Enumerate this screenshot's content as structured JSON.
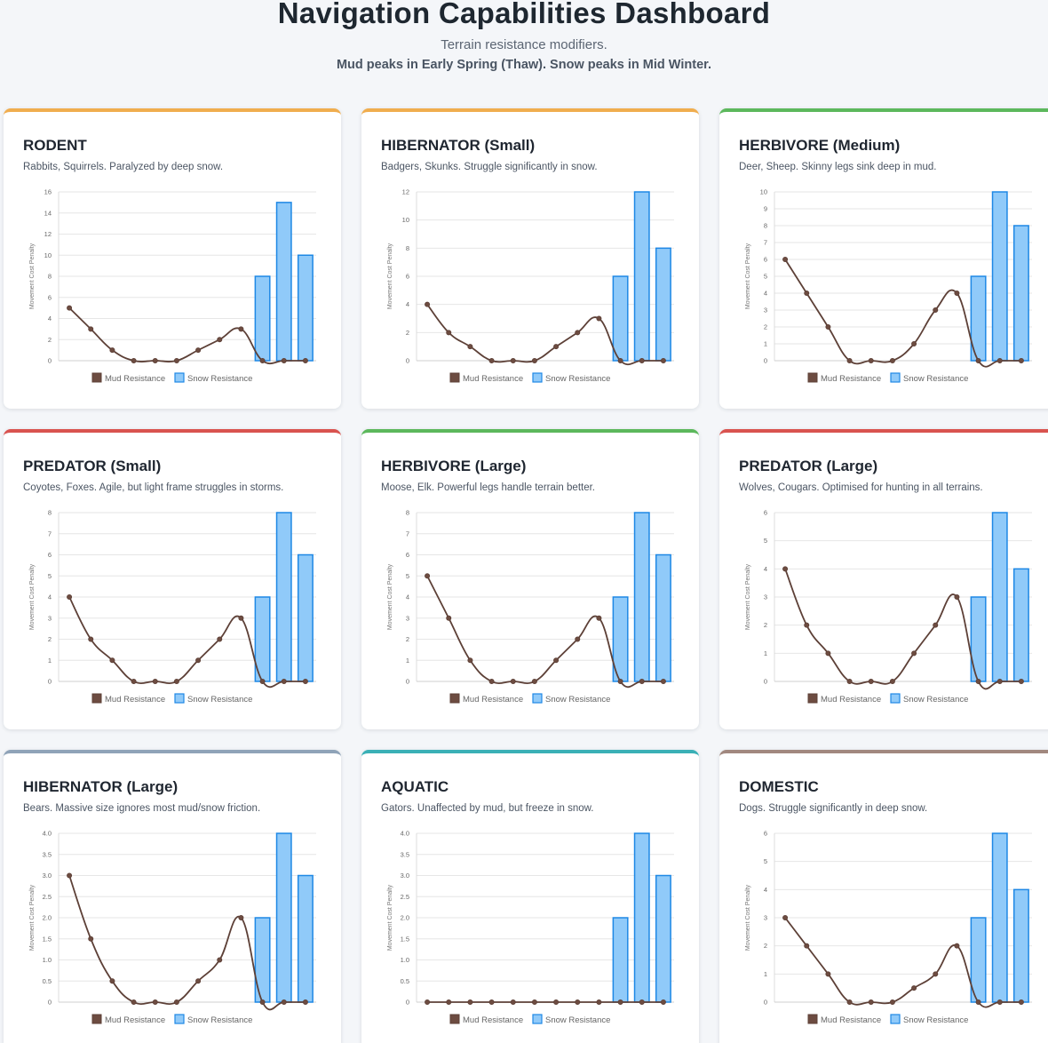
{
  "header": {
    "title": "Navigation Capabilities Dashboard",
    "subtitle": "Terrain resistance modifiers.",
    "peak_note": "Mud peaks in Early Spring (Thaw). Snow peaks in Mid Winter."
  },
  "legend": {
    "mud": "Mud Resistance",
    "snow": "Snow Resistance"
  },
  "y_axis_label": "Movement Cost Penalty",
  "colors": {
    "mud_line": "#5d4037",
    "mud_point": "#6d4c41",
    "snow_fill": "#90caf9",
    "snow_border": "#1e88e5",
    "grid": "#e6e6e6",
    "accent_orange": "#f0ad4e",
    "accent_green": "#5cb85c",
    "accent_red": "#d9534f",
    "accent_gray": "#8fa3b8",
    "accent_teal": "#3ab0b6",
    "accent_brown": "#a1887f"
  },
  "chart_data": [
    {
      "id": "rodent",
      "title": "RODENT",
      "description": "Rabbits, Squirrels. Paralyzed by deep snow.",
      "accent": "#f0ad4e",
      "type": "bar",
      "ylim": [
        0,
        16
      ],
      "ystep": 2,
      "ylabel": "Movement Cost Penalty",
      "series": [
        {
          "name": "Mud Resistance",
          "type": "line",
          "values": [
            5,
            3,
            1,
            0,
            0,
            0,
            1,
            2,
            3,
            0,
            0,
            0
          ]
        },
        {
          "name": "Snow Resistance",
          "type": "bar",
          "values": [
            0,
            0,
            0,
            0,
            0,
            0,
            0,
            0,
            0,
            8,
            15,
            10
          ]
        }
      ]
    },
    {
      "id": "hibernator-small",
      "title": "HIBERNATOR (Small)",
      "description": "Badgers, Skunks. Struggle significantly in snow.",
      "accent": "#f0ad4e",
      "type": "bar",
      "ylim": [
        0,
        12
      ],
      "ystep": 2,
      "ylabel": "Movement Cost Penalty",
      "series": [
        {
          "name": "Mud Resistance",
          "type": "line",
          "values": [
            4,
            2,
            1,
            0,
            0,
            0,
            1,
            2,
            3,
            0,
            0,
            0
          ]
        },
        {
          "name": "Snow Resistance",
          "type": "bar",
          "values": [
            0,
            0,
            0,
            0,
            0,
            0,
            0,
            0,
            0,
            6,
            12,
            8
          ]
        }
      ]
    },
    {
      "id": "herbivore-medium",
      "title": "HERBIVORE (Medium)",
      "description": "Deer, Sheep. Skinny legs sink deep in mud.",
      "accent": "#5cb85c",
      "type": "bar",
      "ylim": [
        0,
        10
      ],
      "ystep": 1,
      "ylabel": "Movement Cost Penalty",
      "series": [
        {
          "name": "Mud Resistance",
          "type": "line",
          "values": [
            6,
            4,
            2,
            0,
            0,
            0,
            1,
            3,
            4,
            0,
            0,
            0
          ]
        },
        {
          "name": "Snow Resistance",
          "type": "bar",
          "values": [
            0,
            0,
            0,
            0,
            0,
            0,
            0,
            0,
            0,
            5,
            10,
            8
          ]
        }
      ]
    },
    {
      "id": "predator-small",
      "title": "PREDATOR (Small)",
      "description": "Coyotes, Foxes. Agile, but light frame struggles in storms.",
      "accent": "#d9534f",
      "type": "bar",
      "ylim": [
        0,
        8
      ],
      "ystep": 1,
      "ylabel": "Movement Cost Penalty",
      "series": [
        {
          "name": "Mud Resistance",
          "type": "line",
          "values": [
            4,
            2,
            1,
            0,
            0,
            0,
            1,
            2,
            3,
            0,
            0,
            0
          ]
        },
        {
          "name": "Snow Resistance",
          "type": "bar",
          "values": [
            0,
            0,
            0,
            0,
            0,
            0,
            0,
            0,
            0,
            4,
            8,
            6
          ]
        }
      ]
    },
    {
      "id": "herbivore-large",
      "title": "HERBIVORE (Large)",
      "description": "Moose, Elk. Powerful legs handle terrain better.",
      "accent": "#5cb85c",
      "type": "bar",
      "ylim": [
        0,
        8
      ],
      "ystep": 1,
      "ylabel": "Movement Cost Penalty",
      "series": [
        {
          "name": "Mud Resistance",
          "type": "line",
          "values": [
            5,
            3,
            1,
            0,
            0,
            0,
            1,
            2,
            3,
            0,
            0,
            0
          ]
        },
        {
          "name": "Snow Resistance",
          "type": "bar",
          "values": [
            0,
            0,
            0,
            0,
            0,
            0,
            0,
            0,
            0,
            4,
            8,
            6
          ]
        }
      ]
    },
    {
      "id": "predator-large",
      "title": "PREDATOR (Large)",
      "description": "Wolves, Cougars. Optimised for hunting in all terrains.",
      "accent": "#d9534f",
      "type": "bar",
      "ylim": [
        0,
        6
      ],
      "ystep": 1,
      "ylabel": "Movement Cost Penalty",
      "series": [
        {
          "name": "Mud Resistance",
          "type": "line",
          "values": [
            4,
            2,
            1,
            0,
            0,
            0,
            1,
            2,
            3,
            0,
            0,
            0
          ]
        },
        {
          "name": "Snow Resistance",
          "type": "bar",
          "values": [
            0,
            0,
            0,
            0,
            0,
            0,
            0,
            0,
            0,
            3,
            6,
            4
          ]
        }
      ]
    },
    {
      "id": "hibernator-large",
      "title": "HIBERNATOR (Large)",
      "description": "Bears. Massive size ignores most mud/snow friction.",
      "accent": "#8fa3b8",
      "type": "bar",
      "ylim": [
        0,
        4
      ],
      "ystep": 0.5,
      "ylabel": "Movement Cost Penalty",
      "series": [
        {
          "name": "Mud Resistance",
          "type": "line",
          "values": [
            3,
            1.5,
            0.5,
            0,
            0,
            0,
            0.5,
            1,
            2,
            0,
            0,
            0
          ]
        },
        {
          "name": "Snow Resistance",
          "type": "bar",
          "values": [
            0,
            0,
            0,
            0,
            0,
            0,
            0,
            0,
            0,
            2,
            4,
            3
          ]
        }
      ]
    },
    {
      "id": "aquatic",
      "title": "AQUATIC",
      "description": "Gators. Unaffected by mud, but freeze in snow.",
      "accent": "#3ab0b6",
      "type": "bar",
      "ylim": [
        0,
        4
      ],
      "ystep": 0.5,
      "ylabel": "Movement Cost Penalty",
      "series": [
        {
          "name": "Mud Resistance",
          "type": "line",
          "values": [
            0,
            0,
            0,
            0,
            0,
            0,
            0,
            0,
            0,
            0,
            0,
            0
          ]
        },
        {
          "name": "Snow Resistance",
          "type": "bar",
          "values": [
            0,
            0,
            0,
            0,
            0,
            0,
            0,
            0,
            0,
            2,
            4,
            3
          ]
        }
      ]
    },
    {
      "id": "domestic",
      "title": "DOMESTIC",
      "description": "Dogs. Struggle significantly in deep snow.",
      "accent": "#a1887f",
      "type": "bar",
      "ylim": [
        0,
        6
      ],
      "ystep": 1,
      "ylabel": "Movement Cost Penalty",
      "series": [
        {
          "name": "Mud Resistance",
          "type": "line",
          "values": [
            3,
            2,
            1,
            0,
            0,
            0,
            0.5,
            1,
            2,
            0,
            0,
            0
          ]
        },
        {
          "name": "Snow Resistance",
          "type": "bar",
          "values": [
            0,
            0,
            0,
            0,
            0,
            0,
            0,
            0,
            0,
            3,
            6,
            4
          ]
        }
      ]
    }
  ]
}
